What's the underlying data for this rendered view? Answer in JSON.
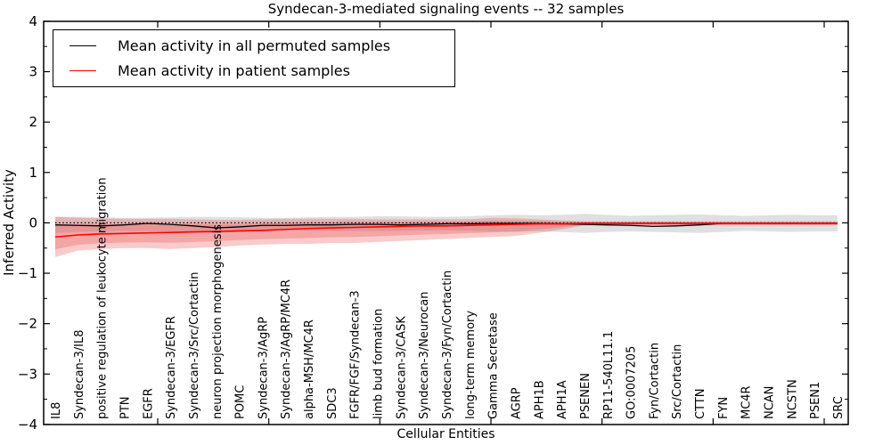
{
  "chart_data": {
    "type": "line",
    "title": "Syndecan-3-mediated signaling events -- 32 samples",
    "xlabel": "Cellular Entities",
    "ylabel": "Inferred Activity",
    "ylim": [
      -4,
      4
    ],
    "yticks": [
      4,
      3,
      2,
      1,
      0,
      -1,
      -2,
      -3,
      -4
    ],
    "ytick_labels": [
      "4",
      "3",
      "2",
      "1",
      "0",
      "−1",
      "−2",
      "−3",
      "−4"
    ],
    "grid": false,
    "zero_reference_line": "dotted",
    "legend_position": "upper-left",
    "categories": [
      "IL8",
      "Syndecan-3/IL8",
      "positive regulation of leukocyte migration",
      "PTN",
      "EGFR",
      "Syndecan-3/EGFR",
      "Syndecan-3/Src/Cortactin",
      "neuron projection morphogenesis",
      "POMC",
      "Syndecan-3/AgRP",
      "Syndecan-3/AgRP/MC4R",
      "alpha-MSH/MC4R",
      "SDC3",
      "FGFR/FGF/Syndecan-3",
      "limb bud formation",
      "Syndecan-3/CASK",
      "Syndecan-3/Neurocan",
      "Syndecan-3/Fyn/Cortactin",
      "long-term memory",
      "Gamma Secretase",
      "AGRP",
      "APH1B",
      "APH1A",
      "PSENEN",
      "RP11-540L11.1",
      "GO:0007205",
      "Fyn/Cortactin",
      "Src/Cortactin",
      "CTTN",
      "FYN",
      "MC4R",
      "NCAN",
      "NCSTN",
      "PSEN1",
      "SRC"
    ],
    "series": [
      {
        "name": "Mean activity in all permuted samples",
        "color": "#000000",
        "values": [
          -0.04,
          -0.05,
          -0.06,
          -0.04,
          -0.01,
          -0.03,
          -0.06,
          -0.1,
          -0.08,
          -0.05,
          -0.05,
          -0.04,
          -0.04,
          -0.03,
          -0.03,
          -0.04,
          -0.03,
          -0.02,
          -0.02,
          -0.01,
          -0.01,
          -0.01,
          -0.02,
          -0.03,
          -0.04,
          -0.05,
          -0.07,
          -0.06,
          -0.04,
          -0.01,
          -0.01,
          -0.01,
          -0.01,
          -0.01,
          -0.01
        ]
      },
      {
        "name": "Mean activity in patient samples",
        "color": "#ff0000",
        "values": [
          -0.28,
          -0.24,
          -0.22,
          -0.21,
          -0.2,
          -0.19,
          -0.18,
          -0.17,
          -0.16,
          -0.15,
          -0.13,
          -0.11,
          -0.1,
          -0.09,
          -0.08,
          -0.07,
          -0.06,
          -0.06,
          -0.05,
          -0.04,
          -0.03,
          -0.02,
          -0.02,
          -0.01,
          -0.01,
          -0.01,
          -0.01,
          -0.01,
          -0.01,
          -0.01,
          -0.01,
          -0.01,
          -0.01,
          -0.01,
          -0.01
        ]
      }
    ],
    "bands": [
      {
        "name": "permuted samples range",
        "color": "#999999",
        "top": [
          0.12,
          0.12,
          0.11,
          0.1,
          0.1,
          0.11,
          0.12,
          0.12,
          0.11,
          0.1,
          0.1,
          0.11,
          0.12,
          0.12,
          0.13,
          0.13,
          0.12,
          0.12,
          0.13,
          0.15,
          0.16,
          0.15,
          0.16,
          0.18,
          0.16,
          0.14,
          0.15,
          0.16,
          0.17,
          0.15,
          0.14,
          0.15,
          0.16,
          0.15,
          0.15
        ],
        "bottom": [
          -0.2,
          -0.18,
          -0.17,
          -0.16,
          -0.16,
          -0.17,
          -0.18,
          -0.2,
          -0.18,
          -0.16,
          -0.15,
          -0.15,
          -0.16,
          -0.16,
          -0.16,
          -0.16,
          -0.15,
          -0.15,
          -0.16,
          -0.17,
          -0.18,
          -0.17,
          -0.18,
          -0.2,
          -0.18,
          -0.17,
          -0.18,
          -0.19,
          -0.2,
          -0.18,
          -0.16,
          -0.17,
          -0.18,
          -0.17,
          -0.17
        ]
      },
      {
        "name": "patient samples range",
        "color": "#e84545",
        "top": [
          0.12,
          0.1,
          0.09,
          0.08,
          0.08,
          0.08,
          0.07,
          0.06,
          0.06,
          0.07,
          0.08,
          0.08,
          0.08,
          0.08,
          0.07,
          0.07,
          0.07,
          0.07,
          0.07,
          0.1,
          0.09,
          0.07,
          0.05,
          0.03,
          0.03,
          0.03,
          0.03,
          0.03,
          0.03,
          0.03,
          0.03,
          0.03,
          0.03,
          0.03,
          0.03
        ],
        "bottom": [
          -0.68,
          -0.55,
          -0.52,
          -0.5,
          -0.5,
          -0.52,
          -0.5,
          -0.48,
          -0.45,
          -0.43,
          -0.42,
          -0.42,
          -0.4,
          -0.4,
          -0.38,
          -0.36,
          -0.34,
          -0.32,
          -0.3,
          -0.28,
          -0.26,
          -0.2,
          -0.13,
          -0.05,
          -0.05,
          -0.05,
          -0.05,
          -0.05,
          -0.05,
          -0.05,
          -0.05,
          -0.05,
          -0.05,
          -0.05,
          -0.05
        ]
      }
    ]
  }
}
